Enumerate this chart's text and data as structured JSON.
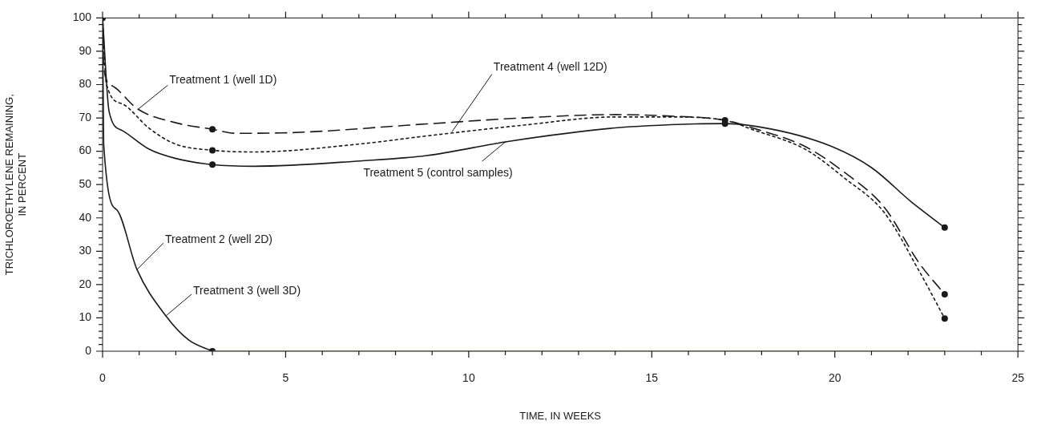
{
  "chart_data": {
    "type": "line",
    "xlabel": "TIME, IN WEEKS",
    "ylabel": "TRICHLOROETHYLENE REMAINING,\nIN PERCENT",
    "grid": false,
    "legend": false,
    "xlim": [
      0,
      25
    ],
    "ylim": [
      0,
      100
    ],
    "xticks": [
      0,
      {
        "value": 1,
        "label": null
      },
      {
        "value": 2,
        "label": null
      },
      {
        "value": 3,
        "label": null
      },
      {
        "value": 4,
        "label": null
      },
      5,
      {
        "value": 6,
        "label": null
      },
      {
        "value": 7,
        "label": null
      },
      {
        "value": 8,
        "label": null
      },
      {
        "value": 9,
        "label": null
      },
      10,
      {
        "value": 11,
        "label": null
      },
      {
        "value": 12,
        "label": null
      },
      {
        "value": 13,
        "label": null
      },
      {
        "value": 14,
        "label": null
      },
      15,
      {
        "value": 16,
        "label": null
      },
      {
        "value": 17,
        "label": null
      },
      {
        "value": 18,
        "label": null
      },
      {
        "value": 19,
        "label": null
      },
      20,
      {
        "value": 21,
        "label": null
      },
      {
        "value": 22,
        "label": null
      },
      {
        "value": 23,
        "label": null
      },
      {
        "value": 24,
        "label": null
      },
      25
    ],
    "yticks": [
      0,
      {
        "value": 2,
        "label": null
      },
      {
        "value": 4,
        "label": null
      },
      {
        "value": 6,
        "label": null
      },
      {
        "value": 8,
        "label": null
      },
      10,
      {
        "value": 12,
        "label": null
      },
      {
        "value": 14,
        "label": null
      },
      {
        "value": 16,
        "label": null
      },
      {
        "value": 18,
        "label": null
      },
      20,
      {
        "value": 22,
        "label": null
      },
      {
        "value": 24,
        "label": null
      },
      {
        "value": 26,
        "label": null
      },
      {
        "value": 28,
        "label": null
      },
      30,
      {
        "value": 32,
        "label": null
      },
      {
        "value": 34,
        "label": null
      },
      {
        "value": 36,
        "label": null
      },
      {
        "value": 38,
        "label": null
      },
      40,
      {
        "value": 42,
        "label": null
      },
      {
        "value": 44,
        "label": null
      },
      {
        "value": 46,
        "label": null
      },
      {
        "value": 48,
        "label": null
      },
      50,
      {
        "value": 52,
        "label": null
      },
      {
        "value": 54,
        "label": null
      },
      {
        "value": 56,
        "label": null
      },
      {
        "value": 58,
        "label": null
      },
      60,
      {
        "value": 62,
        "label": null
      },
      {
        "value": 64,
        "label": null
      },
      {
        "value": 66,
        "label": null
      },
      {
        "value": 68,
        "label": null
      },
      70,
      {
        "value": 72,
        "label": null
      },
      {
        "value": 74,
        "label": null
      },
      {
        "value": 76,
        "label": null
      },
      {
        "value": 78,
        "label": null
      },
      80,
      {
        "value": 82,
        "label": null
      },
      {
        "value": 84,
        "label": null
      },
      {
        "value": 86,
        "label": null
      },
      {
        "value": 88,
        "label": null
      },
      90,
      {
        "value": 92,
        "label": null
      },
      {
        "value": 94,
        "label": null
      },
      {
        "value": 96,
        "label": null
      },
      {
        "value": 98,
        "label": null
      },
      100
    ],
    "series": [
      {
        "type": "line",
        "color": "#1a1a1a",
        "line_style": "dashed",
        "x": [
          0,
          0.03,
          0.25,
          0.97,
          1.98,
          3,
          3.65,
          4.87,
          8.85,
          11.46,
          14,
          15.43,
          17,
          17.75,
          19.19,
          20.27,
          21.35,
          22.3,
          23
        ],
        "values": [
          100,
          85.3,
          79.7,
          72.6,
          68.6,
          66.6,
          65.4,
          65.5,
          68.2,
          70,
          71,
          70.6,
          69.3,
          67,
          61.4,
          53.6,
          43.2,
          26.5,
          17.1
        ]
      },
      {
        "type": "line",
        "color": "#1a1a1a",
        "line_style": "dotted",
        "x": [
          0,
          0.1,
          0.54,
          1.26,
          1.98,
          3,
          4.15,
          7.04,
          8.85,
          11.46,
          14,
          15.43,
          17,
          17.75,
          19.19,
          20.27,
          21.35,
          22.3,
          23
        ],
        "values": [
          100,
          80.5,
          74.2,
          67,
          62.2,
          60.3,
          59.8,
          62.2,
          64.6,
          67.8,
          70.3,
          70.3,
          69.3,
          66.5,
          60.6,
          51.9,
          41.6,
          24.1,
          9.8
        ]
      },
      {
        "type": "line",
        "color": "#1a1a1a",
        "line_style": "solid",
        "x": [
          0,
          0.18,
          0.54,
          1.26,
          1.98,
          3,
          4.15,
          7.04,
          8.85,
          11.1,
          14,
          16.2,
          17,
          18.47,
          19.92,
          21,
          22.09,
          23
        ],
        "values": [
          100,
          71.8,
          66.2,
          60.7,
          57.9,
          56,
          55.5,
          57.1,
          58.7,
          63,
          67,
          68.2,
          68.3,
          66.2,
          61.4,
          55.1,
          44.8,
          37.1
        ]
      },
      {
        "type": "line",
        "color": "#1a1a1a",
        "line_style": "solid",
        "x": [
          0,
          0.03,
          0.39,
          0.94,
          1.73,
          2.35,
          3
        ],
        "values": [
          100,
          62.2,
          42.4,
          24.5,
          10.6,
          3.4,
          0
        ]
      },
      {
        "type": "line",
        "color": "#5c5a20",
        "line_style": "solid",
        "x": [
          3,
          23
        ],
        "values": [
          0,
          0
        ]
      },
      {
        "type": "scatter",
        "color": "#1a1a1a",
        "marker": "circle",
        "x": [
          0,
          3,
          3,
          3,
          3,
          17,
          17,
          23,
          23,
          23
        ],
        "values": [
          100,
          66.6,
          60.3,
          56,
          0,
          69.3,
          68.3,
          37.1,
          17.1,
          9.8
        ]
      }
    ],
    "annotations": [
      {
        "text": "Treatment 1 (well 1D)",
        "x": 0.97,
        "y": 72.6
      },
      {
        "text": "Treatment 4 (well 12D)",
        "x": 9.54,
        "y": 65.8
      },
      {
        "text": "Treatment 5 (control samples)",
        "x": 11.02,
        "y": 63
      },
      {
        "text": "Treatment 2 (well 2D)",
        "x": 0.94,
        "y": 24.5
      },
      {
        "text": "Treatment 3 (well 3D)",
        "x": 1.73,
        "y": 10.6
      }
    ]
  }
}
